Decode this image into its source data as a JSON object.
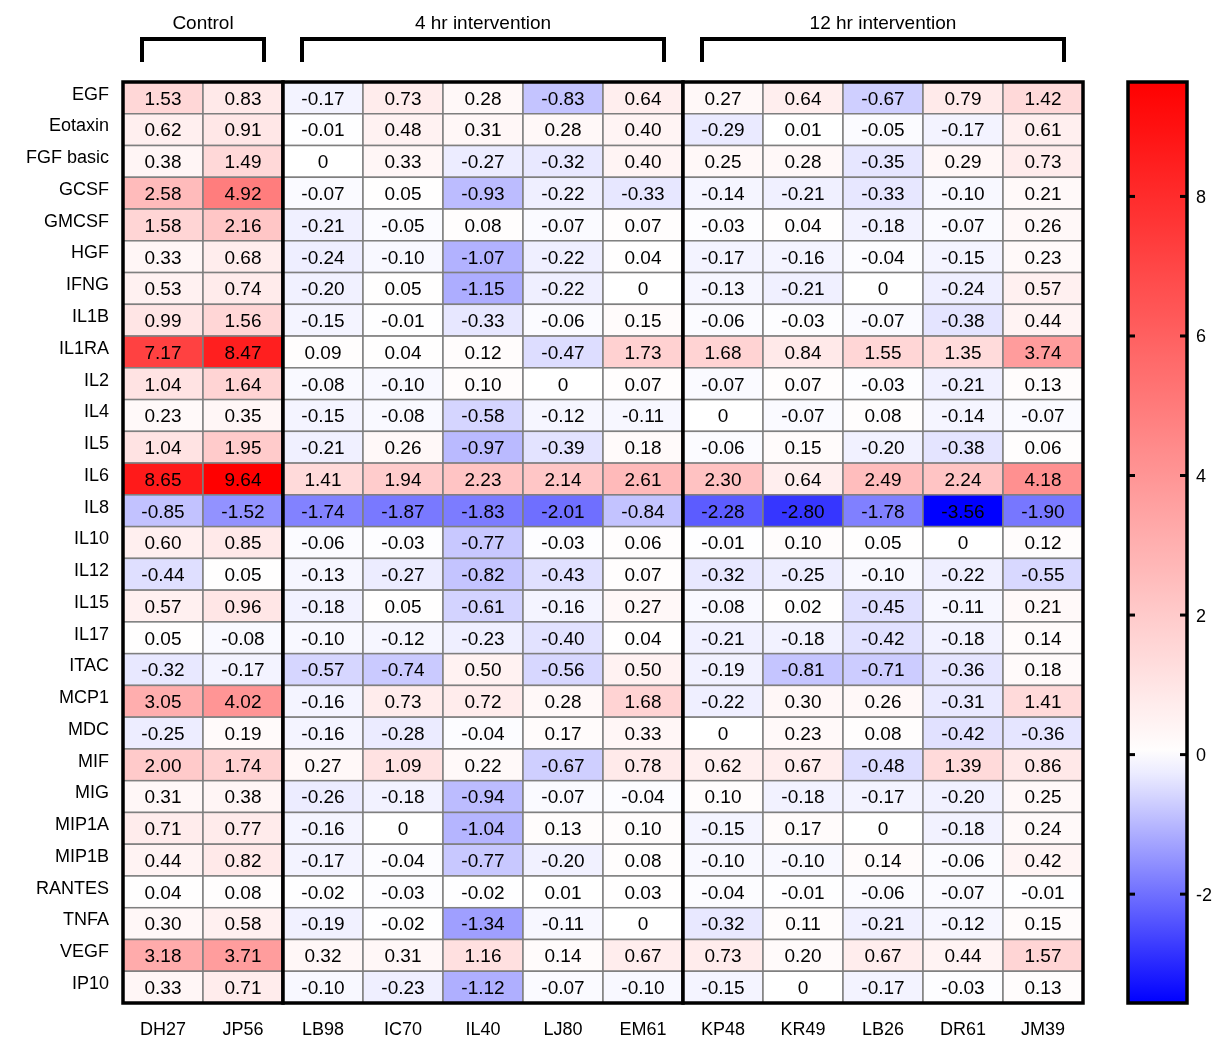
{
  "chart_data": [
    {
      "type": "heatmap",
      "title": "Control",
      "categories": [
        "DH27",
        "JP56"
      ],
      "y_categories": [
        "EGF",
        "Eotaxin",
        "FGF basic",
        "GCSF",
        "GMCSF",
        "HGF",
        "IFNG",
        "IL1B",
        "IL1RA",
        "IL2",
        "IL4",
        "IL5",
        "IL6",
        "IL8",
        "IL10",
        "IL12",
        "IL15",
        "IL17",
        "ITAC",
        "MCP1",
        "MDC",
        "MIF",
        "MIG",
        "MIP1A",
        "MIP1B",
        "RANTES",
        "TNFA",
        "VEGF",
        "IP10"
      ],
      "cells": [
        [
          1.53,
          0.83
        ],
        [
          0.62,
          0.91
        ],
        [
          0.38,
          1.49
        ],
        [
          2.58,
          4.92
        ],
        [
          1.58,
          2.16
        ],
        [
          0.33,
          0.68
        ],
        [
          0.53,
          0.74
        ],
        [
          0.99,
          1.56
        ],
        [
          7.17,
          8.47
        ],
        [
          1.04,
          1.64
        ],
        [
          0.23,
          0.35
        ],
        [
          1.04,
          1.95
        ],
        [
          8.65,
          9.64
        ],
        [
          -0.85,
          -1.52
        ],
        [
          0.6,
          0.85
        ],
        [
          -0.44,
          0.05
        ],
        [
          0.57,
          0.96
        ],
        [
          0.05,
          -0.08
        ],
        [
          -0.32,
          -0.17
        ],
        [
          3.05,
          4.02
        ],
        [
          -0.25,
          0.19
        ],
        [
          2.0,
          1.74
        ],
        [
          0.31,
          0.38
        ],
        [
          0.71,
          0.77
        ],
        [
          0.44,
          0.82
        ],
        [
          0.04,
          0.08
        ],
        [
          0.3,
          0.58
        ],
        [
          3.18,
          3.71
        ],
        [
          0.33,
          0.71
        ]
      ],
      "cell_labels": [
        [
          "1.53",
          "0.83"
        ],
        [
          "0.62",
          "0.91"
        ],
        [
          "0.38",
          "1.49"
        ],
        [
          "2.58",
          "4.92"
        ],
        [
          "1.58",
          "2.16"
        ],
        [
          "0.33",
          "0.68"
        ],
        [
          "0.53",
          "0.74"
        ],
        [
          "0.99",
          "1.56"
        ],
        [
          "7.17",
          "8.47"
        ],
        [
          "1.04",
          "1.64"
        ],
        [
          "0.23",
          "0.35"
        ],
        [
          "1.04",
          "1.95"
        ],
        [
          "8.65",
          "9.64"
        ],
        [
          "-0.85",
          "-1.52"
        ],
        [
          "0.60",
          "0.85"
        ],
        [
          "-0.44",
          "0.05"
        ],
        [
          "0.57",
          "0.96"
        ],
        [
          "0.05",
          "-0.08"
        ],
        [
          "-0.32",
          "-0.17"
        ],
        [
          "3.05",
          "4.02"
        ],
        [
          "-0.25",
          "0.19"
        ],
        [
          "2.00",
          "1.74"
        ],
        [
          "0.31",
          "0.38"
        ],
        [
          "0.71",
          "0.77"
        ],
        [
          "0.44",
          "0.82"
        ],
        [
          "0.04",
          "0.08"
        ],
        [
          "0.30",
          "0.58"
        ],
        [
          "3.18",
          "3.71"
        ],
        [
          "0.33",
          "0.71"
        ]
      ]
    },
    {
      "type": "heatmap",
      "title": "4 hr intervention",
      "categories": [
        "LB98",
        "IC70",
        "IL40",
        "LJ80",
        "EM61"
      ],
      "y_categories": [
        null,
        null,
        null,
        null,
        null,
        null,
        null,
        null,
        null,
        null,
        null,
        null,
        null,
        null,
        null,
        null,
        null,
        null,
        null,
        null,
        null,
        null,
        null,
        null,
        null,
        null,
        null,
        null,
        null
      ],
      "cells": [
        [
          -0.17,
          0.73,
          0.28,
          -0.83,
          0.64
        ],
        [
          -0.01,
          0.48,
          0.31,
          0.28,
          0.4
        ],
        [
          0,
          0.33,
          -0.27,
          -0.32,
          0.4
        ],
        [
          -0.07,
          0.05,
          -0.93,
          -0.22,
          -0.33
        ],
        [
          -0.21,
          -0.05,
          0.08,
          -0.07,
          0.07
        ],
        [
          -0.24,
          -0.1,
          -1.07,
          -0.22,
          0.04
        ],
        [
          -0.2,
          0.05,
          -1.15,
          -0.22,
          0
        ],
        [
          -0.15,
          -0.01,
          -0.33,
          -0.06,
          0.15
        ],
        [
          0.09,
          0.04,
          0.12,
          -0.47,
          1.73
        ],
        [
          -0.08,
          -0.1,
          0.1,
          0,
          0.07
        ],
        [
          -0.15,
          -0.08,
          -0.58,
          -0.12,
          -0.11
        ],
        [
          -0.21,
          0.26,
          -0.97,
          -0.39,
          0.18
        ],
        [
          1.41,
          1.94,
          2.23,
          2.14,
          2.61
        ],
        [
          -1.74,
          -1.87,
          -1.83,
          -2.01,
          -0.84
        ],
        [
          -0.06,
          -0.03,
          -0.77,
          -0.03,
          0.06
        ],
        [
          -0.13,
          -0.27,
          -0.82,
          -0.43,
          0.07
        ],
        [
          -0.18,
          0.05,
          -0.61,
          -0.16,
          0.27
        ],
        [
          -0.1,
          -0.12,
          -0.23,
          -0.4,
          0.04
        ],
        [
          -0.57,
          -0.74,
          0.5,
          -0.56,
          0.5
        ],
        [
          -0.16,
          0.73,
          0.72,
          0.28,
          1.68
        ],
        [
          -0.16,
          -0.28,
          -0.04,
          0.17,
          0.33
        ],
        [
          0.27,
          1.09,
          0.22,
          -0.67,
          0.78
        ],
        [
          -0.26,
          -0.18,
          -0.94,
          -0.07,
          -0.04
        ],
        [
          -0.16,
          0,
          -1.04,
          0.13,
          0.1
        ],
        [
          -0.17,
          -0.04,
          -0.77,
          -0.2,
          0.08
        ],
        [
          -0.02,
          -0.03,
          -0.02,
          0.01,
          0.03
        ],
        [
          -0.19,
          -0.02,
          -1.34,
          -0.11,
          0
        ],
        [
          0.32,
          0.31,
          1.16,
          0.14,
          0.67
        ],
        [
          -0.1,
          -0.23,
          -1.12,
          -0.07,
          -0.1
        ]
      ],
      "cell_labels": [
        [
          "-0.17",
          "0.73",
          "0.28",
          "-0.83",
          "0.64"
        ],
        [
          "-0.01",
          "0.48",
          "0.31",
          "0.28",
          "0.40"
        ],
        [
          "0",
          "0.33",
          "-0.27",
          "-0.32",
          "0.40"
        ],
        [
          "-0.07",
          "0.05",
          "-0.93",
          "-0.22",
          "-0.33"
        ],
        [
          "-0.21",
          "-0.05",
          "0.08",
          "-0.07",
          "0.07"
        ],
        [
          "-0.24",
          "-0.10",
          "-1.07",
          "-0.22",
          "0.04"
        ],
        [
          "-0.20",
          "0.05",
          "-1.15",
          "-0.22",
          "0"
        ],
        [
          "-0.15",
          "-0.01",
          "-0.33",
          "-0.06",
          "0.15"
        ],
        [
          "0.09",
          "0.04",
          "0.12",
          "-0.47",
          "1.73"
        ],
        [
          "-0.08",
          "-0.10",
          "0.10",
          "0",
          "0.07"
        ],
        [
          "-0.15",
          "-0.08",
          "-0.58",
          "-0.12",
          "-0.11"
        ],
        [
          "-0.21",
          "0.26",
          "-0.97",
          "-0.39",
          "0.18"
        ],
        [
          "1.41",
          "1.94",
          "2.23",
          "2.14",
          "2.61"
        ],
        [
          "-1.74",
          "-1.87",
          "-1.83",
          "-2.01",
          "-0.84"
        ],
        [
          "-0.06",
          "-0.03",
          "-0.77",
          "-0.03",
          "0.06"
        ],
        [
          "-0.13",
          "-0.27",
          "-0.82",
          "-0.43",
          "0.07"
        ],
        [
          "-0.18",
          "0.05",
          "-0.61",
          "-0.16",
          "0.27"
        ],
        [
          "-0.10",
          "-0.12",
          "-0.23",
          "-0.40",
          "0.04"
        ],
        [
          "-0.57",
          "-0.74",
          "0.50",
          "-0.56",
          "0.50"
        ],
        [
          "-0.16",
          "0.73",
          "0.72",
          "0.28",
          "1.68"
        ],
        [
          "-0.16",
          "-0.28",
          "-0.04",
          "0.17",
          "0.33"
        ],
        [
          "0.27",
          "1.09",
          "0.22",
          "-0.67",
          "0.78"
        ],
        [
          "-0.26",
          "-0.18",
          "-0.94",
          "-0.07",
          "-0.04"
        ],
        [
          "-0.16",
          "0",
          "-1.04",
          "0.13",
          "0.10"
        ],
        [
          "-0.17",
          "-0.04",
          "-0.77",
          "-0.20",
          "0.08"
        ],
        [
          "-0.02",
          "-0.03",
          "-0.02",
          "0.01",
          "0.03"
        ],
        [
          "-0.19",
          "-0.02",
          "-1.34",
          "-0.11",
          "0"
        ],
        [
          "0.32",
          "0.31",
          "1.16",
          "0.14",
          "0.67"
        ],
        [
          "-0.10",
          "-0.23",
          "-1.12",
          "-0.07",
          "-0.10"
        ]
      ]
    },
    {
      "type": "heatmap",
      "title": "12 hr intervention",
      "categories": [
        "KP48",
        "KR49",
        "LB26",
        "DR61",
        "JM39"
      ],
      "y_categories": [
        null,
        null,
        null,
        null,
        null,
        null,
        null,
        null,
        null,
        null,
        null,
        null,
        null,
        null,
        null,
        null,
        null,
        null,
        null,
        null,
        null,
        null,
        null,
        null,
        null,
        null,
        null,
        null,
        null
      ],
      "cells": [
        [
          0.27,
          0.64,
          -0.67,
          0.79,
          1.42
        ],
        [
          -0.29,
          0.01,
          -0.05,
          -0.17,
          0.61
        ],
        [
          0.25,
          0.28,
          -0.35,
          0.29,
          0.73
        ],
        [
          -0.14,
          -0.21,
          -0.33,
          -0.1,
          0.21
        ],
        [
          -0.03,
          0.04,
          -0.18,
          -0.07,
          0.26
        ],
        [
          -0.17,
          -0.16,
          -0.04,
          -0.15,
          0.23
        ],
        [
          -0.13,
          -0.21,
          0,
          -0.24,
          0.57
        ],
        [
          -0.06,
          -0.03,
          -0.07,
          -0.38,
          0.44
        ],
        [
          1.68,
          0.84,
          1.55,
          1.35,
          3.74
        ],
        [
          -0.07,
          0.07,
          -0.03,
          -0.21,
          0.13
        ],
        [
          0,
          -0.07,
          0.08,
          -0.14,
          -0.07
        ],
        [
          -0.06,
          0.15,
          -0.2,
          -0.38,
          0.06
        ],
        [
          2.3,
          0.64,
          2.49,
          2.24,
          4.18
        ],
        [
          -2.28,
          -2.8,
          -1.78,
          -3.56,
          -1.9
        ],
        [
          -0.01,
          0.1,
          0.05,
          0,
          0.12
        ],
        [
          -0.32,
          -0.25,
          -0.1,
          -0.22,
          -0.55
        ],
        [
          -0.08,
          0.02,
          -0.45,
          -0.11,
          0.21
        ],
        [
          -0.21,
          -0.18,
          -0.42,
          -0.18,
          0.14
        ],
        [
          -0.19,
          -0.81,
          -0.71,
          -0.36,
          0.18
        ],
        [
          -0.22,
          0.3,
          0.26,
          -0.31,
          1.41
        ],
        [
          0,
          0.23,
          0.08,
          -0.42,
          -0.36
        ],
        [
          0.62,
          0.67,
          -0.48,
          1.39,
          0.86
        ],
        [
          0.1,
          -0.18,
          -0.17,
          -0.2,
          0.25
        ],
        [
          -0.15,
          0.17,
          0,
          -0.18,
          0.24
        ],
        [
          -0.1,
          -0.1,
          0.14,
          -0.06,
          0.42
        ],
        [
          -0.04,
          -0.01,
          -0.06,
          -0.07,
          -0.01
        ],
        [
          -0.32,
          0.11,
          -0.21,
          -0.12,
          0.15
        ],
        [
          0.73,
          0.2,
          0.67,
          0.44,
          1.57
        ],
        [
          -0.15,
          0,
          -0.17,
          -0.03,
          0.13
        ]
      ],
      "cell_labels": [
        [
          "0.27",
          "0.64",
          "-0.67",
          "0.79",
          "1.42"
        ],
        [
          "-0.29",
          "0.01",
          "-0.05",
          "-0.17",
          "0.61"
        ],
        [
          "0.25",
          "0.28",
          "-0.35",
          "0.29",
          "0.73"
        ],
        [
          "-0.14",
          "-0.21",
          "-0.33",
          "-0.10",
          "0.21"
        ],
        [
          "-0.03",
          "0.04",
          "-0.18",
          "-0.07",
          "0.26"
        ],
        [
          "-0.17",
          "-0.16",
          "-0.04",
          "-0.15",
          "0.23"
        ],
        [
          "-0.13",
          "-0.21",
          "0",
          "-0.24",
          "0.57"
        ],
        [
          "-0.06",
          "-0.03",
          "-0.07",
          "-0.38",
          "0.44"
        ],
        [
          "1.68",
          "0.84",
          "1.55",
          "1.35",
          "3.74"
        ],
        [
          "-0.07",
          "0.07",
          "-0.03",
          "-0.21",
          "0.13"
        ],
        [
          "0",
          "-0.07",
          "0.08",
          "-0.14",
          "-0.07"
        ],
        [
          "-0.06",
          "0.15",
          "-0.20",
          "-0.38",
          "0.06"
        ],
        [
          "2.30",
          "0.64",
          "2.49",
          "2.24",
          "4.18"
        ],
        [
          "-2.28",
          "-2.80",
          "-1.78",
          "-3.56",
          "-1.90"
        ],
        [
          "-0.01",
          "0.10",
          "0.05",
          "0",
          "0.12"
        ],
        [
          "-0.32",
          "-0.25",
          "-0.10",
          "-0.22",
          "-0.55"
        ],
        [
          "-0.08",
          "0.02",
          "-0.45",
          "-0.11",
          "0.21"
        ],
        [
          "-0.21",
          "-0.18",
          "-0.42",
          "-0.18",
          "0.14"
        ],
        [
          "-0.19",
          "-0.81",
          "-0.71",
          "-0.36",
          "0.18"
        ],
        [
          "-0.22",
          "0.30",
          "0.26",
          "-0.31",
          "1.41"
        ],
        [
          "0",
          "0.23",
          "0.08",
          "-0.42",
          "-0.36"
        ],
        [
          "0.62",
          "0.67",
          "-0.48",
          "1.39",
          "0.86"
        ],
        [
          "0.10",
          "-0.18",
          "-0.17",
          "-0.20",
          "0.25"
        ],
        [
          "-0.15",
          "0.17",
          "0",
          "-0.18",
          "0.24"
        ],
        [
          "-0.10",
          "-0.10",
          "0.14",
          "-0.06",
          "0.42"
        ],
        [
          "-0.04",
          "-0.01",
          "-0.06",
          "-0.07",
          "-0.01"
        ],
        [
          "-0.32",
          "0.11",
          "-0.21",
          "-0.12",
          "0.15"
        ],
        [
          "0.73",
          "0.20",
          "0.67",
          "0.44",
          "1.57"
        ],
        [
          "-0.15",
          "0",
          "-0.17",
          "-0.03",
          "0.13"
        ]
      ],
      "clim": [
        -3.56,
        9.64
      ],
      "cticks": [
        -2,
        0,
        2,
        4,
        6,
        8
      ]
    }
  ]
}
